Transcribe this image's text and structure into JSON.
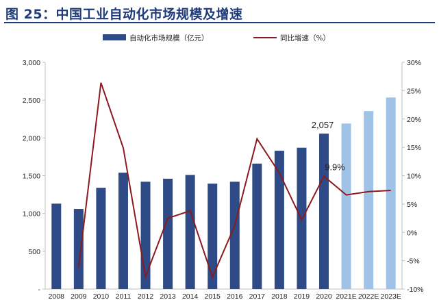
{
  "figure": {
    "title": "图 25：中国工业自动化市场规模及增速"
  },
  "colors": {
    "title": "#1f3b7a",
    "bar_actual": "#2e4a87",
    "bar_forecast": "#9fc3e7",
    "line": "#8b1a1f",
    "axis": "#bfbfbf"
  },
  "chart_data": {
    "type": "bar",
    "categories": [
      "2008",
      "2009",
      "2010",
      "2011",
      "2012",
      "2013",
      "2014",
      "2015",
      "2016",
      "2017",
      "2018",
      "2019",
      "2020",
      "2021E",
      "2022E",
      "2023E"
    ],
    "series": [
      {
        "name": "自动化市场规模（亿元）",
        "type": "bar",
        "axis": "left",
        "values": [
          1130,
          1060,
          1340,
          1540,
          1420,
          1460,
          1510,
          1395,
          1420,
          1660,
          1830,
          1870,
          2057,
          2190,
          2355,
          2535
        ],
        "forecast_from_index": 13
      },
      {
        "name": "同比增速（%）",
        "type": "line",
        "axis": "right",
        "values": [
          null,
          -6.2,
          26.4,
          14.9,
          -7.8,
          2.5,
          3.8,
          -7.9,
          1.2,
          16.5,
          10.5,
          2.2,
          9.9,
          6.6,
          7.2,
          7.4
        ]
      }
    ],
    "y_left": {
      "range": [
        0,
        3000
      ],
      "ticks": [
        0,
        500,
        1000,
        1500,
        2000,
        2500,
        3000
      ],
      "tick_labels": [
        "-",
        "500",
        "1,000",
        "1,500",
        "2,000",
        "2,500",
        "3,000"
      ]
    },
    "y_right": {
      "range": [
        -10,
        30
      ],
      "ticks": [
        -10,
        -5,
        0,
        5,
        10,
        15,
        20,
        25,
        30
      ],
      "tick_labels": [
        "-10%",
        "-5%",
        "0%",
        "5%",
        "10%",
        "15%",
        "20%",
        "25%",
        "30%"
      ]
    },
    "data_labels": [
      {
        "series": 0,
        "index": 12,
        "text": "2,057"
      },
      {
        "series": 1,
        "index": 12,
        "text": "9.9%"
      }
    ],
    "legend": {
      "placement": "top-center",
      "entries": [
        "自动化市场规模（亿元）",
        "同比增速（%）"
      ]
    },
    "grid": false,
    "xlabel": "",
    "ylabel": "",
    "ylabel_right": ""
  }
}
